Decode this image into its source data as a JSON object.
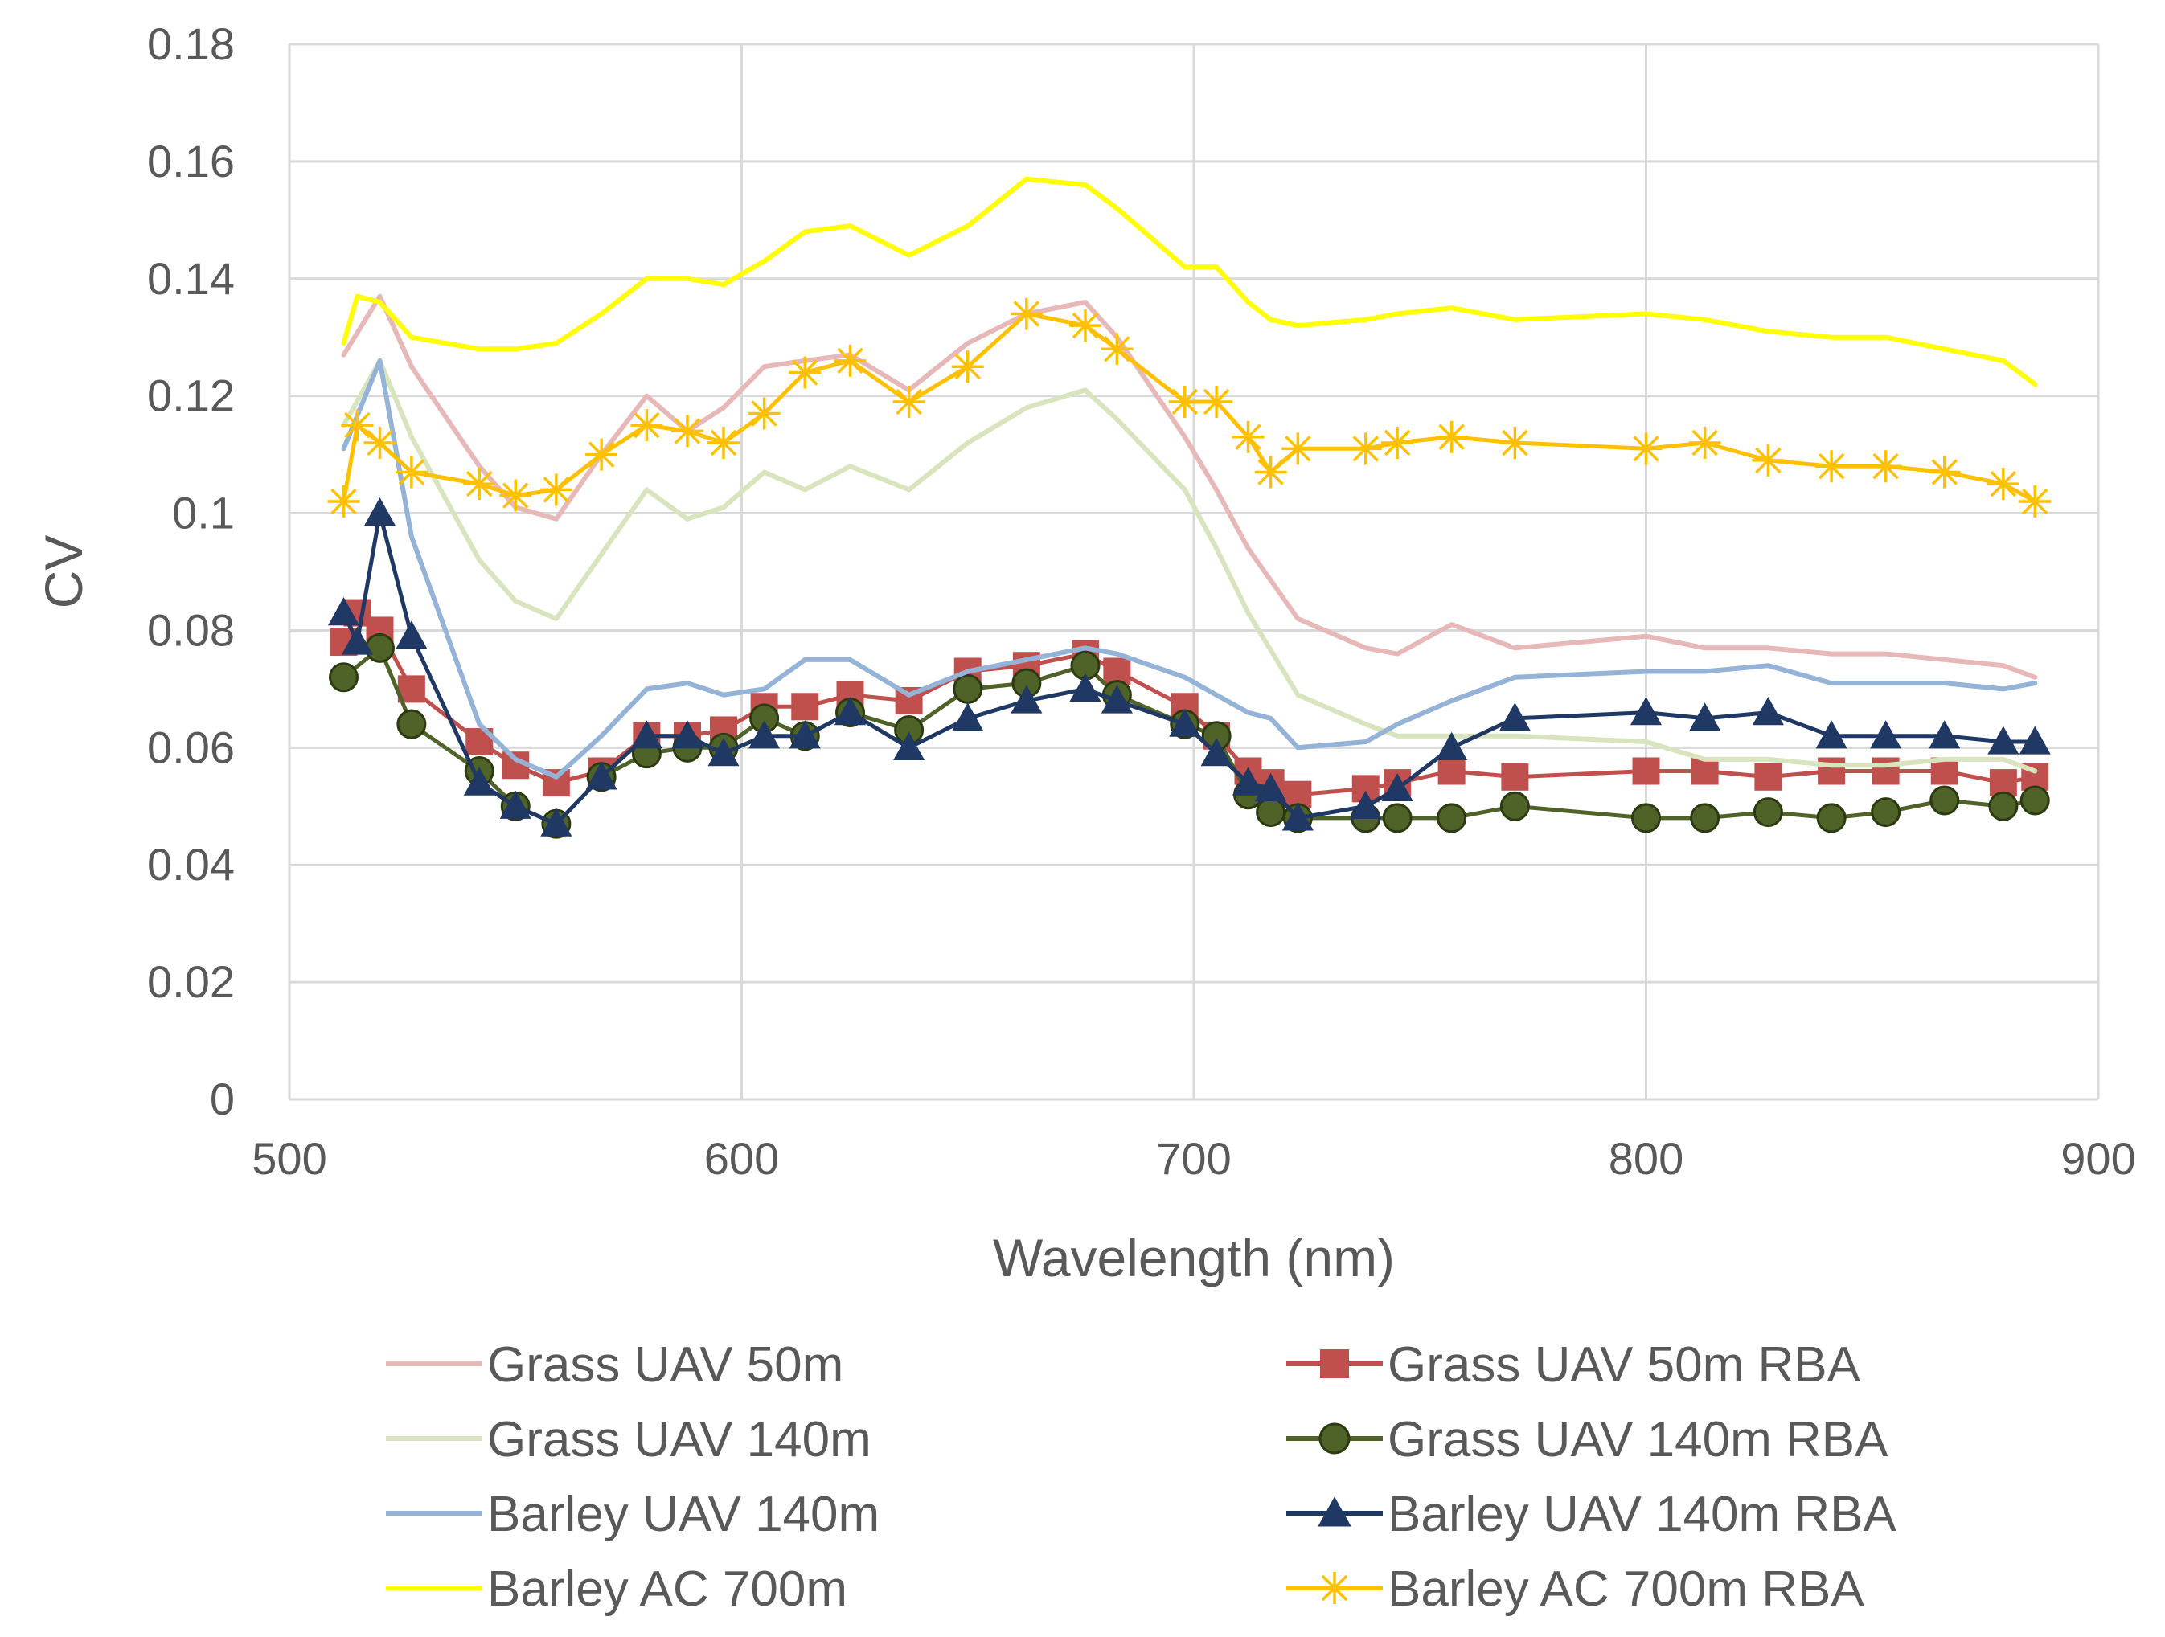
{
  "chart_data": {
    "type": "line",
    "title": "",
    "xlabel": "Wavelength (nm)",
    "ylabel": "CV",
    "xlim": [
      500,
      900
    ],
    "ylim": [
      0,
      0.18
    ],
    "x_ticks": [
      500,
      600,
      700,
      800,
      900
    ],
    "x_tick_labels": [
      "500",
      "600",
      "700",
      "800",
      "900"
    ],
    "y_ticks": [
      0,
      0.02,
      0.04,
      0.06,
      0.08,
      0.1,
      0.12,
      0.14,
      0.16,
      0.18
    ],
    "y_tick_labels": [
      "0",
      "0.02",
      "0.04",
      "0.06",
      "0.08",
      "0.1",
      "0.12",
      "0.14",
      "0.16",
      "0.18"
    ],
    "grid": true,
    "legend_position": "bottom",
    "series": [
      {
        "name": "Grass UAV 50m",
        "color": "#e6b9b8",
        "marker": "none",
        "x": [
          512,
          520,
          527,
          542,
          550,
          559,
          569,
          579,
          588,
          596,
          605,
          614,
          624,
          637,
          650,
          663,
          676,
          683,
          698,
          705,
          712,
          723,
          738,
          745,
          757,
          771,
          800,
          813,
          827,
          841,
          853,
          866,
          879,
          886
        ],
        "y": [
          0.127,
          0.137,
          0.125,
          0.108,
          0.101,
          0.099,
          0.11,
          0.12,
          0.114,
          0.118,
          0.125,
          0.126,
          0.127,
          0.121,
          0.129,
          0.134,
          0.136,
          0.13,
          0.113,
          0.104,
          0.094,
          0.082,
          0.077,
          0.076,
          0.081,
          0.077,
          0.079,
          0.077,
          0.077,
          0.076,
          0.076,
          0.075,
          0.074,
          0.072
        ]
      },
      {
        "name": "Grass UAV 50m RBA",
        "color": "#c0504d",
        "marker": "square",
        "x": [
          512,
          515,
          520,
          527,
          542,
          550,
          559,
          569,
          579,
          588,
          596,
          605,
          614,
          624,
          637,
          650,
          663,
          676,
          683,
          698,
          705,
          712,
          717,
          723,
          738,
          745,
          757,
          771,
          800,
          813,
          827,
          841,
          853,
          866,
          879,
          886
        ],
        "y": [
          0.078,
          0.083,
          0.08,
          0.07,
          0.061,
          0.057,
          0.054,
          0.056,
          0.062,
          0.062,
          0.063,
          0.067,
          0.067,
          0.069,
          0.068,
          0.073,
          0.074,
          0.076,
          0.073,
          0.067,
          0.062,
          0.056,
          0.054,
          0.052,
          0.053,
          0.054,
          0.056,
          0.055,
          0.056,
          0.056,
          0.055,
          0.056,
          0.056,
          0.056,
          0.054,
          0.055
        ]
      },
      {
        "name": "Grass UAV 140m",
        "color": "#d7e4bd",
        "marker": "none",
        "x": [
          512,
          520,
          527,
          542,
          550,
          559,
          569,
          579,
          588,
          596,
          605,
          614,
          624,
          637,
          650,
          663,
          676,
          683,
          698,
          705,
          712,
          723,
          738,
          745,
          757,
          771,
          800,
          813,
          827,
          841,
          853,
          866,
          879,
          886
        ],
        "y": [
          0.115,
          0.126,
          0.113,
          0.092,
          0.085,
          0.082,
          0.093,
          0.104,
          0.099,
          0.101,
          0.107,
          0.104,
          0.108,
          0.104,
          0.112,
          0.118,
          0.121,
          0.116,
          0.104,
          0.094,
          0.083,
          0.069,
          0.064,
          0.062,
          0.062,
          0.062,
          0.061,
          0.058,
          0.058,
          0.057,
          0.057,
          0.058,
          0.058,
          0.056
        ]
      },
      {
        "name": "Grass UAV 140m RBA",
        "color": "#4f6228",
        "marker": "circle",
        "x": [
          512,
          520,
          527,
          542,
          550,
          559,
          569,
          579,
          588,
          596,
          605,
          614,
          624,
          637,
          650,
          663,
          676,
          683,
          698,
          705,
          712,
          717,
          723,
          738,
          745,
          757,
          771,
          800,
          813,
          827,
          841,
          853,
          866,
          879,
          886
        ],
        "y": [
          0.072,
          0.077,
          0.064,
          0.056,
          0.05,
          0.047,
          0.055,
          0.059,
          0.06,
          0.06,
          0.065,
          0.062,
          0.066,
          0.063,
          0.07,
          0.071,
          0.074,
          0.069,
          0.064,
          0.062,
          0.052,
          0.049,
          0.048,
          0.048,
          0.048,
          0.048,
          0.05,
          0.048,
          0.048,
          0.049,
          0.048,
          0.049,
          0.051,
          0.05,
          0.051
        ]
      },
      {
        "name": "Barley UAV 140m",
        "color": "#95b3d7",
        "marker": "none",
        "x": [
          512,
          520,
          527,
          542,
          550,
          559,
          569,
          579,
          588,
          596,
          605,
          614,
          624,
          637,
          650,
          663,
          676,
          683,
          698,
          705,
          712,
          717,
          723,
          738,
          745,
          757,
          771,
          800,
          813,
          827,
          841,
          853,
          866,
          879,
          886
        ],
        "y": [
          0.111,
          0.126,
          0.096,
          0.064,
          0.058,
          0.055,
          0.062,
          0.07,
          0.071,
          0.069,
          0.07,
          0.075,
          0.075,
          0.069,
          0.073,
          0.075,
          0.077,
          0.076,
          0.072,
          0.069,
          0.066,
          0.065,
          0.06,
          0.061,
          0.064,
          0.068,
          0.072,
          0.073,
          0.073,
          0.074,
          0.071,
          0.071,
          0.071,
          0.07,
          0.071
        ]
      },
      {
        "name": "Barley UAV 140m RBA",
        "color": "#1f3864",
        "marker": "triangle",
        "x": [
          512,
          515,
          520,
          527,
          542,
          550,
          559,
          569,
          579,
          588,
          596,
          605,
          614,
          624,
          637,
          650,
          663,
          676,
          683,
          698,
          705,
          712,
          717,
          723,
          738,
          745,
          757,
          771,
          800,
          813,
          827,
          841,
          853,
          866,
          879,
          886
        ],
        "y": [
          0.083,
          0.078,
          0.1,
          0.079,
          0.054,
          0.05,
          0.047,
          0.055,
          0.062,
          0.062,
          0.059,
          0.062,
          0.062,
          0.066,
          0.06,
          0.065,
          0.068,
          0.07,
          0.068,
          0.064,
          0.059,
          0.054,
          0.053,
          0.048,
          0.05,
          0.053,
          0.06,
          0.065,
          0.066,
          0.065,
          0.066,
          0.062,
          0.062,
          0.062,
          0.061,
          0.061
        ]
      },
      {
        "name": "Barley AC 700m",
        "color": "#ffff00",
        "marker": "none",
        "x": [
          512,
          515,
          520,
          527,
          542,
          550,
          559,
          569,
          579,
          588,
          596,
          605,
          614,
          624,
          637,
          650,
          663,
          676,
          683,
          698,
          705,
          712,
          717,
          723,
          738,
          745,
          757,
          771,
          800,
          813,
          827,
          841,
          853,
          866,
          879,
          886
        ],
        "y": [
          0.129,
          0.137,
          0.136,
          0.13,
          0.128,
          0.128,
          0.129,
          0.134,
          0.14,
          0.14,
          0.139,
          0.143,
          0.148,
          0.149,
          0.144,
          0.149,
          0.157,
          0.156,
          0.152,
          0.142,
          0.142,
          0.136,
          0.133,
          0.132,
          0.133,
          0.134,
          0.135,
          0.133,
          0.134,
          0.133,
          0.131,
          0.13,
          0.13,
          0.128,
          0.126,
          0.122
        ]
      },
      {
        "name": "Barley AC 700m RBA",
        "color": "#ffc000",
        "marker": "star",
        "x": [
          512,
          515,
          520,
          527,
          542,
          550,
          559,
          569,
          579,
          588,
          596,
          605,
          614,
          624,
          637,
          650,
          663,
          676,
          683,
          698,
          705,
          712,
          717,
          723,
          738,
          745,
          757,
          771,
          800,
          813,
          827,
          841,
          853,
          866,
          879,
          886
        ],
        "y": [
          0.102,
          0.115,
          0.112,
          0.107,
          0.105,
          0.103,
          0.104,
          0.11,
          0.115,
          0.114,
          0.112,
          0.117,
          0.124,
          0.126,
          0.119,
          0.125,
          0.134,
          0.132,
          0.128,
          0.119,
          0.119,
          0.113,
          0.107,
          0.111,
          0.111,
          0.112,
          0.113,
          0.112,
          0.111,
          0.112,
          0.109,
          0.108,
          0.108,
          0.107,
          0.105,
          0.102
        ]
      }
    ]
  }
}
